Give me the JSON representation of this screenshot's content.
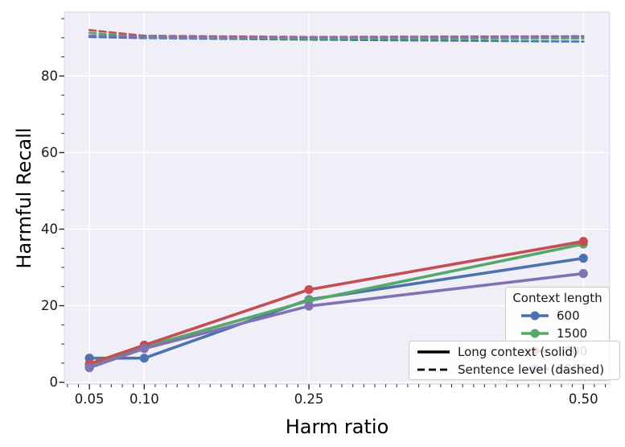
{
  "chart_data": {
    "type": "line",
    "title": "",
    "xlabel": "Harm ratio",
    "ylabel": "Harmful Recall",
    "x": [
      0.05,
      0.1,
      0.25,
      0.5
    ],
    "x_tick_labels": [
      "0.05",
      "0.10",
      "0.25",
      "0.50"
    ],
    "x_tick_values": [
      0.05,
      0.1,
      0.25,
      0.5
    ],
    "y_tick_labels": [
      "0",
      "20",
      "40",
      "60",
      "80"
    ],
    "y_tick_values": [
      0,
      20,
      40,
      60,
      80
    ],
    "xlim": [
      0.0272,
      0.524
    ],
    "ylim": [
      -0.5,
      96.7
    ],
    "x_minor_step": 0.01,
    "y_minor_step": 5,
    "grid": true,
    "style": {
      "plot_background": "#F0EEF6",
      "grid_color": "#FFFFFF",
      "border_color": "#DCD9E6",
      "tick_color": "#262626",
      "solid_width": 3.6,
      "dashed_width": 2.6,
      "marker_radius": 5.6
    },
    "series": [
      {
        "name": "600 long context",
        "legend": "600",
        "style": "solid",
        "color": "#4C72B0",
        "marker": true,
        "values": [
          6.3,
          6.3,
          21.6,
          32.4
        ]
      },
      {
        "name": "1500 long context",
        "legend": "1500",
        "style": "solid",
        "color": "#55A868",
        "marker": true,
        "values": [
          4.6,
          9.2,
          21.3,
          36.1
        ]
      },
      {
        "name": "3000 long context",
        "legend": "3000",
        "style": "solid",
        "color": "#C44E52",
        "marker": true,
        "values": [
          4.8,
          9.7,
          24.2,
          36.8
        ]
      },
      {
        "name": "6000 long context",
        "legend": "6000",
        "style": "solid",
        "color": "#8172B2",
        "marker": true,
        "values": [
          3.8,
          8.8,
          19.9,
          28.4
        ]
      },
      {
        "name": "600 sentence level",
        "legend": "600",
        "style": "dashed",
        "color": "#4C72B0",
        "marker": false,
        "values": [
          90.2,
          89.9,
          89.5,
          89.0
        ]
      },
      {
        "name": "1500 sentence level",
        "legend": "1500",
        "style": "dashed",
        "color": "#55A868",
        "marker": false,
        "values": [
          91.3,
          90.1,
          89.8,
          89.8
        ]
      },
      {
        "name": "3000 sentence level",
        "legend": "3000",
        "style": "dashed",
        "color": "#C44E52",
        "marker": false,
        "values": [
          92.0,
          90.5,
          90.2,
          90.4
        ]
      },
      {
        "name": "6000 sentence level",
        "legend": "6000",
        "style": "dashed",
        "color": "#8172B2",
        "marker": false,
        "values": [
          90.6,
          90.3,
          90.1,
          90.3
        ]
      }
    ],
    "legends": {
      "context_length": {
        "title": "Context length",
        "entries": [
          {
            "label": "600",
            "color": "#4C72B0"
          },
          {
            "label": "1500",
            "color": "#55A868"
          },
          {
            "label": "3000",
            "color": "#C44E52"
          },
          {
            "label": "6000",
            "color": "#8172B2"
          }
        ]
      },
      "line_style": {
        "entries": [
          {
            "label": "Long context (solid)",
            "style": "solid",
            "color": "#000000"
          },
          {
            "label": "Sentence level (dashed)",
            "style": "dashed",
            "color": "#000000"
          }
        ]
      }
    }
  }
}
